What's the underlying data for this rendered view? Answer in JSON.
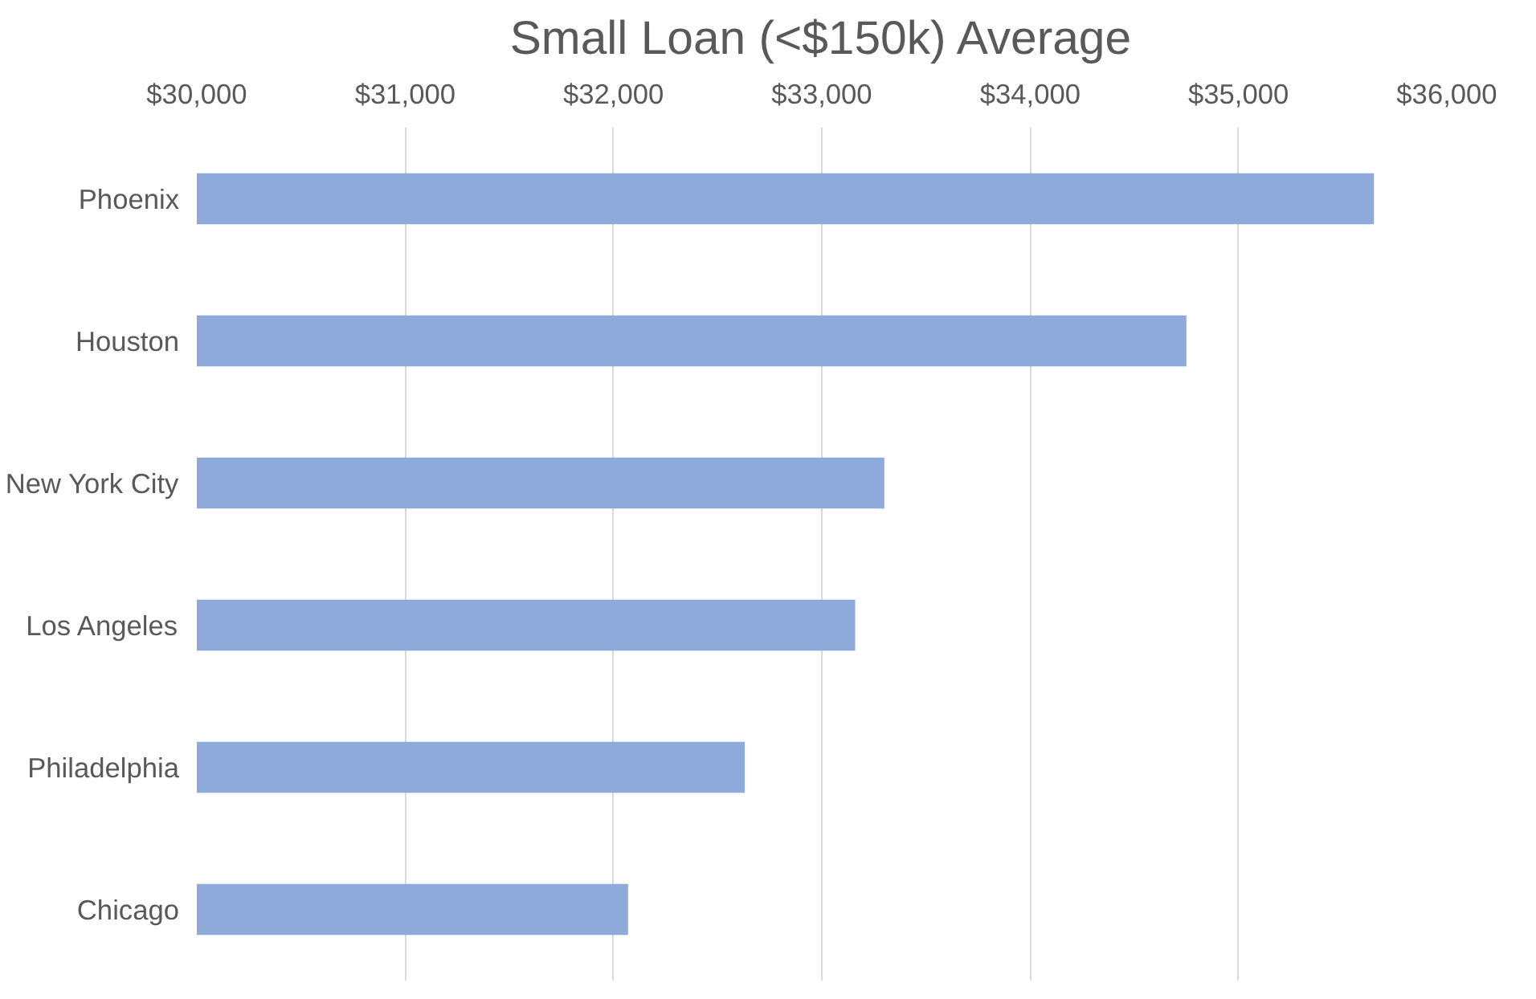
{
  "chart_data": {
    "type": "bar",
    "orientation": "horizontal",
    "title": "Small Loan (<$150k) Average",
    "categories": [
      "Phoenix",
      "Houston",
      "New York City",
      "Los Angeles",
      "Philadelphia",
      "Chicago"
    ],
    "values": [
      35650,
      34750,
      33300,
      33160,
      32630,
      32070
    ],
    "color": "#8eaadb",
    "xlim": [
      30000,
      36000
    ],
    "xticks": [
      {
        "value": 30000,
        "label": "$30,000"
      },
      {
        "value": 31000,
        "label": "$31,000"
      },
      {
        "value": 32000,
        "label": "$32,000"
      },
      {
        "value": 33000,
        "label": "$33,000"
      },
      {
        "value": 34000,
        "label": "$34,000"
      },
      {
        "value": 35000,
        "label": "$35,000"
      },
      {
        "value": 36000,
        "label": "$36,000"
      }
    ],
    "grid": "x"
  }
}
